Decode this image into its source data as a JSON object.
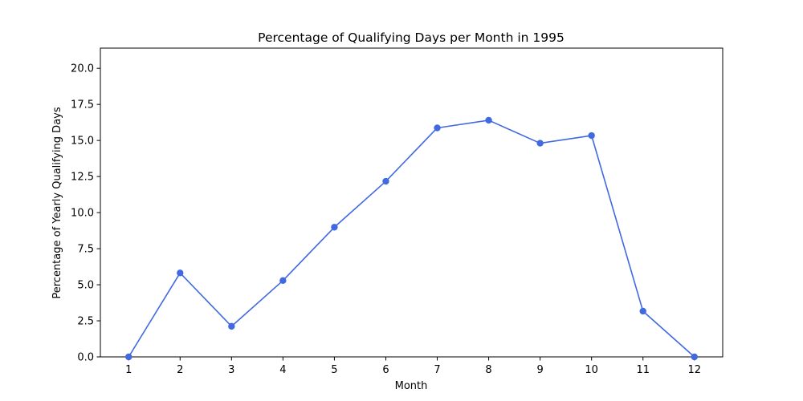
{
  "chart_data": {
    "type": "line",
    "title": "Percentage of Qualifying Days per Month in 1995",
    "xlabel": "Month",
    "ylabel": "Percentage of Yearly Qualifying Days",
    "x": [
      1,
      2,
      3,
      4,
      5,
      6,
      7,
      8,
      9,
      10,
      11,
      12
    ],
    "x_tick_labels": [
      "1",
      "2",
      "3",
      "4",
      "5",
      "6",
      "7",
      "8",
      "9",
      "10",
      "11",
      "12"
    ],
    "series": [
      {
        "values": [
          0.0,
          5.82,
          2.12,
          5.29,
          8.99,
          12.17,
          15.87,
          16.4,
          14.81,
          15.34,
          3.17,
          0.0
        ],
        "color": "#4169e1",
        "marker": "circle"
      }
    ],
    "xlim": [
      0.45,
      12.55
    ],
    "ylim": [
      0,
      21.4
    ],
    "y_ticks": [
      0.0,
      2.5,
      5.0,
      7.5,
      10.0,
      12.5,
      15.0,
      17.5,
      20.0
    ],
    "y_tick_labels": [
      "0.0",
      "2.5",
      "5.0",
      "7.5",
      "10.0",
      "12.5",
      "15.0",
      "17.5",
      "20.0"
    ],
    "grid": false,
    "legend": "none"
  }
}
